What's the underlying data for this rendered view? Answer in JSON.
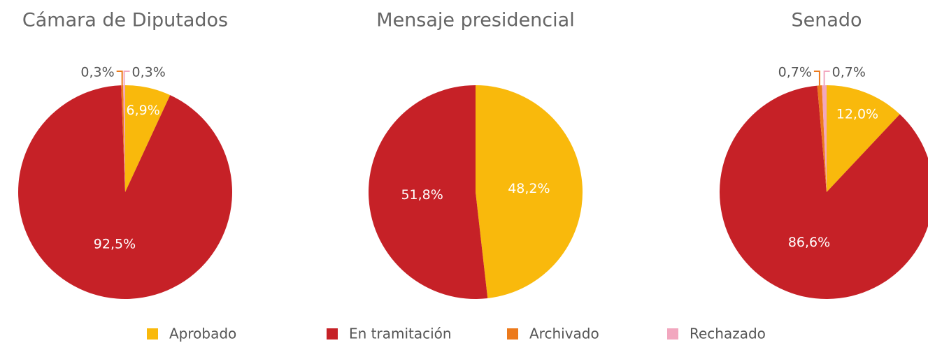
{
  "chart_data": [
    {
      "type": "pie",
      "title": "Cámara de Diputados",
      "categories": [
        "Aprobado",
        "En tramitación",
        "Archivado",
        "Rechazado"
      ],
      "values": [
        6.9,
        92.5,
        0.3,
        0.3
      ],
      "value_labels": [
        "6,9%",
        "92,5%",
        "0,3%",
        "0,3%"
      ],
      "colors": [
        "#f9b90c",
        "#c62127",
        "#ec7a1c",
        "#f2a7bf"
      ]
    },
    {
      "type": "pie",
      "title": "Mensaje presidencial",
      "categories": [
        "Aprobado",
        "En tramitación"
      ],
      "values": [
        48.2,
        51.8
      ],
      "value_labels": [
        "48,2%",
        "51,8%"
      ],
      "colors": [
        "#f9b90c",
        "#c62127"
      ]
    },
    {
      "type": "pie",
      "title": "Senado",
      "categories": [
        "Aprobado",
        "En tramitación",
        "Archivado",
        "Rechazado"
      ],
      "values": [
        12.0,
        86.6,
        0.7,
        0.7
      ],
      "value_labels": [
        "12,0%",
        "86,6%",
        "0,7%",
        "0,7%"
      ],
      "colors": [
        "#f9b90c",
        "#c62127",
        "#ec7a1c",
        "#f2a7bf"
      ]
    }
  ]
}
